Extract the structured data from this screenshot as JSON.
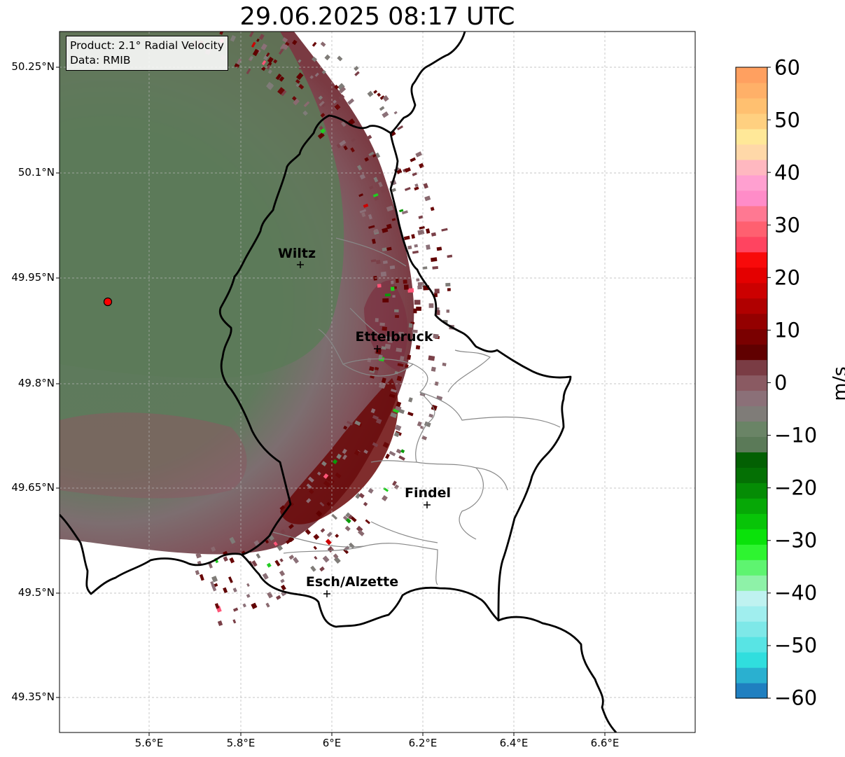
{
  "title": "29.06.2025 08:17 UTC",
  "info": {
    "product": "Product: 2.1° Radial Velocity",
    "source": "Data: RMIB"
  },
  "lat_ticks": [
    "50.25°N",
    "50.1°N",
    "49.95°N",
    "49.8°N",
    "49.65°N",
    "49.5°N",
    "49.35°N"
  ],
  "lon_ticks": [
    "5.6°E",
    "5.8°E",
    "6°E",
    "6.2°E",
    "6.4°E",
    "6.6°E"
  ],
  "cities": [
    {
      "name": "Wiltz",
      "lon": 5.93,
      "lat": 49.97
    },
    {
      "name": "Ettelbruck",
      "lon": 6.1,
      "lat": 49.85
    },
    {
      "name": "Findel",
      "lon": 6.21,
      "lat": 49.627
    },
    {
      "name": "Esch/Alzette",
      "lon": 5.99,
      "lat": 49.5
    }
  ],
  "radar_site": {
    "lon": 5.505,
    "lat": 49.914
  },
  "colorbar": {
    "unit": "m/s",
    "min": -60,
    "max": 60,
    "tick_labels": [
      "60",
      "50",
      "40",
      "30",
      "20",
      "10",
      "0",
      "−10",
      "−20",
      "−30",
      "−40",
      "−50",
      "−60"
    ],
    "colors_bottom_to_top": [
      "#1f7fc0",
      "#2ab0d0",
      "#30dede",
      "#58e4e4",
      "#7ee8e8",
      "#a0eeee",
      "#bff2f0",
      "#8ef2a8",
      "#5ef470",
      "#2ef430",
      "#0ae20a",
      "#08c408",
      "#06a806",
      "#058c05",
      "#047004",
      "#036003",
      "#5b7a58",
      "#6a8466",
      "#7f7c78",
      "#8b7078",
      "#8a5a62",
      "#7a3c44",
      "#600000",
      "#7a0000",
      "#940000",
      "#b00000",
      "#cc0000",
      "#e40000",
      "#f80a0a",
      "#ff4460",
      "#ff6070",
      "#ff7892",
      "#ff8cc8",
      "#ffa0d0",
      "#ffb8c0",
      "#ffd8a8",
      "#ffe898",
      "#ffd080",
      "#ffc070",
      "#ffb068",
      "#ffa060"
    ],
    "accent_colors": {
      "outbound_max": "#600000",
      "inbound": "#047004",
      "near_zero": "#7f7c78"
    }
  }
}
